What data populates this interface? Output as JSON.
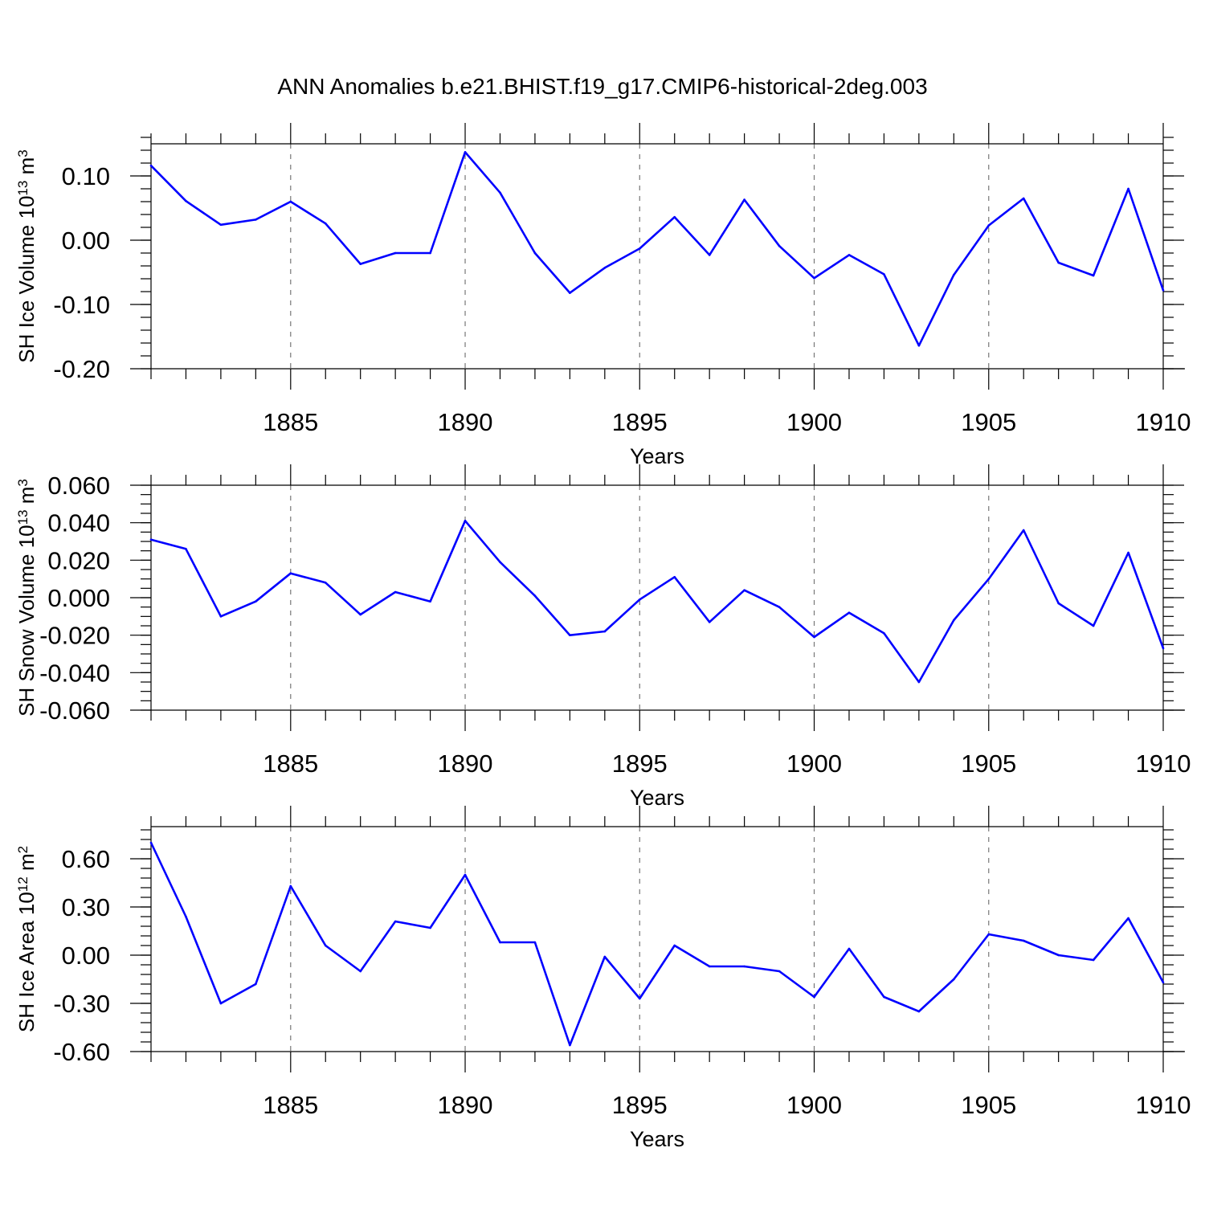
{
  "title": "ANN Anomalies b.e21.BHIST.f19_g17.CMIP6-historical-2deg.003",
  "line_color": "#0000ff",
  "chart_data": [
    {
      "type": "line",
      "ylabel_main": "SH Ice Volume 10",
      "ylabel_exp": "13",
      "ylabel_unit": " m",
      "ylabel_unit_exp": "3",
      "xlabel": "Years",
      "xlim": [
        1881,
        1910
      ],
      "ylim": [
        -0.2,
        0.15
      ],
      "x_major_ticks": [
        1885,
        1890,
        1895,
        1900,
        1905,
        1910
      ],
      "x_tick_labels": [
        "1885",
        "1890",
        "1895",
        "1900",
        "1905",
        "1910"
      ],
      "y_major_ticks": [
        0.1,
        0.0,
        -0.1,
        -0.2
      ],
      "y_tick_labels": [
        "0.10",
        "0.00",
        "-0.10",
        "-0.20"
      ],
      "y_minor_step": 0.02,
      "grid": "vertical dashed at major x ticks",
      "x": [
        1881,
        1882,
        1883,
        1884,
        1885,
        1886,
        1887,
        1888,
        1889,
        1890,
        1891,
        1892,
        1893,
        1894,
        1895,
        1896,
        1897,
        1898,
        1899,
        1900,
        1901,
        1902,
        1903,
        1904,
        1905,
        1906,
        1907,
        1908,
        1909,
        1910
      ],
      "values": [
        0.116,
        0.061,
        0.024,
        0.032,
        0.06,
        0.026,
        -0.037,
        -0.02,
        -0.02,
        0.137,
        0.074,
        -0.02,
        -0.082,
        -0.043,
        -0.013,
        0.036,
        -0.023,
        0.063,
        -0.009,
        -0.059,
        -0.023,
        -0.053,
        -0.164,
        -0.054,
        0.023,
        0.065,
        -0.035,
        -0.055,
        0.08,
        -0.078
      ]
    },
    {
      "type": "line",
      "ylabel_main": "SH Snow Volume 10",
      "ylabel_exp": "13",
      "ylabel_unit": " m",
      "ylabel_unit_exp": "3",
      "xlabel": "Years",
      "xlim": [
        1881,
        1910
      ],
      "ylim": [
        -0.06,
        0.06
      ],
      "x_major_ticks": [
        1885,
        1890,
        1895,
        1900,
        1905,
        1910
      ],
      "x_tick_labels": [
        "1885",
        "1890",
        "1895",
        "1900",
        "1905",
        "1910"
      ],
      "y_major_ticks": [
        0.06,
        0.04,
        0.02,
        0.0,
        -0.02,
        -0.04,
        -0.06
      ],
      "y_tick_labels": [
        "0.060",
        "0.040",
        "0.020",
        "0.000",
        "-0.020",
        "-0.040",
        "-0.060"
      ],
      "y_minor_step": 0.005,
      "grid": "vertical dashed at major x ticks",
      "x": [
        1881,
        1882,
        1883,
        1884,
        1885,
        1886,
        1887,
        1888,
        1889,
        1890,
        1891,
        1892,
        1893,
        1894,
        1895,
        1896,
        1897,
        1898,
        1899,
        1900,
        1901,
        1902,
        1903,
        1904,
        1905,
        1906,
        1907,
        1908,
        1909,
        1910
      ],
      "values": [
        0.031,
        0.026,
        -0.01,
        -0.002,
        0.013,
        0.008,
        -0.009,
        0.003,
        -0.002,
        0.041,
        0.019,
        0.001,
        -0.02,
        -0.018,
        -0.001,
        0.011,
        -0.013,
        0.004,
        -0.005,
        -0.021,
        -0.008,
        -0.019,
        -0.045,
        -0.012,
        0.01,
        0.036,
        -0.003,
        -0.015,
        0.024,
        -0.027
      ]
    },
    {
      "type": "line",
      "ylabel_main": "SH Ice Area 10",
      "ylabel_exp": "12",
      "ylabel_unit": " m",
      "ylabel_unit_exp": "2",
      "xlabel": "Years",
      "xlim": [
        1881,
        1910
      ],
      "ylim": [
        -0.6,
        0.8
      ],
      "x_major_ticks": [
        1885,
        1890,
        1895,
        1900,
        1905,
        1910
      ],
      "x_tick_labels": [
        "1885",
        "1890",
        "1895",
        "1900",
        "1905",
        "1910"
      ],
      "y_major_ticks": [
        0.6,
        0.3,
        0.0,
        -0.3,
        -0.6
      ],
      "y_tick_labels": [
        "0.60",
        "0.30",
        "0.00",
        "-0.30",
        "-0.60"
      ],
      "y_minor_step": 0.06,
      "grid": "vertical dashed at major x ticks",
      "x": [
        1881,
        1882,
        1883,
        1884,
        1885,
        1886,
        1887,
        1888,
        1889,
        1890,
        1891,
        1892,
        1893,
        1894,
        1895,
        1896,
        1897,
        1898,
        1899,
        1900,
        1901,
        1902,
        1903,
        1904,
        1905,
        1906,
        1907,
        1908,
        1909,
        1910
      ],
      "values": [
        0.7,
        0.24,
        -0.3,
        -0.18,
        0.43,
        0.06,
        -0.1,
        0.21,
        0.17,
        0.5,
        0.08,
        0.08,
        -0.56,
        -0.01,
        -0.27,
        0.06,
        -0.07,
        -0.07,
        -0.1,
        -0.26,
        0.04,
        -0.26,
        -0.35,
        -0.15,
        0.13,
        0.09,
        0.0,
        -0.03,
        0.23,
        -0.17
      ]
    }
  ]
}
